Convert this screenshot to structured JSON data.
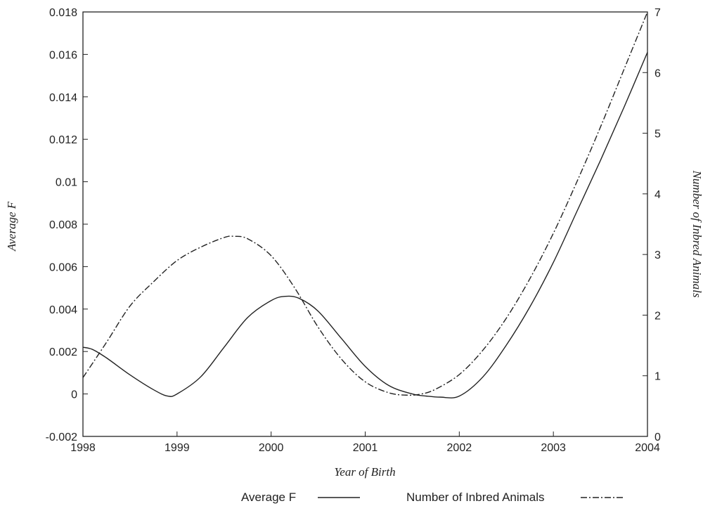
{
  "chart_data": {
    "type": "line",
    "title": "",
    "xlabel": "Year of Birth",
    "ylabel_left": "Average F",
    "ylabel_right": "Number of Inbred Animals",
    "xlim": [
      1998,
      2004
    ],
    "ylim_left": [
      -0.002,
      0.018
    ],
    "ylim_right": [
      0,
      7
    ],
    "x_ticks": [
      "1998",
      "1999",
      "2000",
      "2001",
      "2002",
      "2003",
      "2004"
    ],
    "y_left_ticks": [
      "-0.002",
      "0",
      "0.002",
      "0.004",
      "0.006",
      "0.008",
      "0.01",
      "0.012",
      "0.014",
      "0.016",
      "0.018"
    ],
    "y_right_ticks": [
      "0",
      "1",
      "2",
      "3",
      "4",
      "5",
      "6",
      "7"
    ],
    "grid": false,
    "legend_position": "bottom",
    "series": [
      {
        "name": "Average F",
        "axis": "left",
        "style": "solid",
        "x": [
          1998,
          1998.1,
          1998.25,
          1998.5,
          1998.75,
          1998.9,
          1999.0,
          1999.25,
          1999.5,
          1999.75,
          2000.0,
          2000.15,
          2000.3,
          2000.5,
          2000.75,
          2001.0,
          2001.25,
          2001.5,
          2001.65,
          2001.8,
          2002.0,
          2002.25,
          2002.5,
          2002.75,
          2003.0,
          2003.25,
          2003.5,
          2003.75,
          2004.0
        ],
        "y": [
          0.0022,
          0.0021,
          0.0017,
          0.0009,
          0.0002,
          -0.0001,
          0.0,
          0.0008,
          0.0022,
          0.0036,
          0.0044,
          0.0046,
          0.0045,
          0.0039,
          0.0026,
          0.0013,
          0.0004,
          0.0,
          -0.0001,
          -0.00015,
          -0.0001,
          0.0008,
          0.0023,
          0.0041,
          0.0062,
          0.0086,
          0.011,
          0.0135,
          0.0161
        ]
      },
      {
        "name": "Number of Inbred Animals",
        "axis": "right",
        "style": "dashdot",
        "x": [
          1998,
          1998.25,
          1998.5,
          1998.75,
          1999.0,
          1999.25,
          1999.5,
          1999.6,
          1999.75,
          2000.0,
          2000.25,
          2000.5,
          2000.75,
          2001.0,
          2001.25,
          2001.45,
          2001.6,
          2001.75,
          2002.0,
          2002.25,
          2002.5,
          2002.75,
          2003.0,
          2003.25,
          2003.5,
          2003.75,
          2004.0
        ],
        "y": [
          0.97,
          1.55,
          2.15,
          2.55,
          2.9,
          3.12,
          3.28,
          3.3,
          3.26,
          2.98,
          2.45,
          1.8,
          1.27,
          0.9,
          0.72,
          0.68,
          0.7,
          0.78,
          1.02,
          1.42,
          1.95,
          2.6,
          3.35,
          4.2,
          5.1,
          6.05,
          7.0
        ]
      }
    ]
  }
}
